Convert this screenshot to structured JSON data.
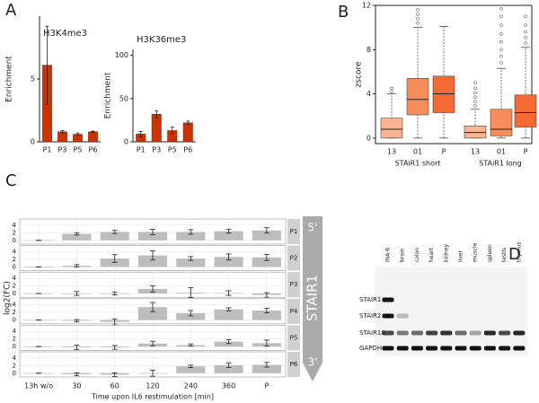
{
  "chart_data": [
    {
      "type": "bar",
      "panel": "A",
      "title": "H3K4me3",
      "ylabel": "Enrichment",
      "categories": [
        "P1",
        "P3",
        "P5",
        "P6"
      ],
      "values": [
        6.1,
        0.8,
        0.6,
        0.8
      ],
      "errors": [
        3.1,
        0.1,
        0.1,
        0.05
      ],
      "color": "#cc3300",
      "ylim": [
        0,
        10
      ],
      "yticks": [
        0,
        5
      ]
    },
    {
      "type": "bar",
      "title": "H3K36me3",
      "ylabel": "Enrichment",
      "categories": [
        "P1",
        "P3",
        "P5",
        "P6"
      ],
      "values": [
        9,
        32,
        13,
        22
      ],
      "errors": [
        3,
        4,
        4,
        2
      ],
      "color": "#cc3300",
      "ylim": [
        0,
        107
      ],
      "yticks": [
        0,
        50,
        100
      ]
    },
    {
      "type": "box",
      "panel": "B",
      "ylabel": "zscore",
      "categories": [
        "13",
        "01",
        "P",
        "13",
        "01",
        "P"
      ],
      "group_labels": [
        "STAiR1 short",
        "STAiR1 long"
      ],
      "ylim": [
        -0.5,
        12
      ],
      "yticks": [
        0,
        4,
        8,
        12
      ],
      "boxes": [
        {
          "whislo": 0,
          "q1": 0,
          "median": 0.8,
          "q3": 1.8,
          "whishi": 4,
          "fliers": [
            4.2,
            4.5
          ],
          "color": "#f9b491"
        },
        {
          "whislo": 0,
          "q1": 2.1,
          "median": 3.5,
          "q3": 5.4,
          "whishi": 10,
          "fliers": [
            10.4,
            10.8,
            11.2,
            11.6
          ],
          "color": "#f88d5c"
        },
        {
          "whislo": 0,
          "q1": 2.3,
          "median": 4.0,
          "q3": 5.6,
          "whishi": 10.1,
          "fliers": [],
          "color": "#f36a35"
        },
        {
          "whislo": 0,
          "q1": 0,
          "median": 0.5,
          "q3": 1.1,
          "whishi": 2.6,
          "fliers": [
            2.9,
            3.3,
            3.7,
            4.1,
            4.5,
            5.0
          ],
          "color": "#f9b491"
        },
        {
          "whislo": 0,
          "q1": 0.2,
          "median": 0.8,
          "q3": 2.6,
          "whishi": 6.3,
          "fliers": [
            6.8,
            7.4,
            8.0,
            8.7,
            9.4,
            10.2,
            11.0,
            11.7
          ],
          "color": "#f88d5c"
        },
        {
          "whislo": 0,
          "q1": 1.0,
          "median": 2.3,
          "q3": 3.9,
          "whishi": 8.2,
          "fliers": [
            8.6,
            9.1,
            9.6,
            10.2,
            11.0
          ],
          "color": "#f36a35"
        }
      ]
    },
    {
      "type": "bar-grid",
      "panel": "C",
      "ylabel": "log2(FC)",
      "xlabel": "Time upon IL6 restimulation [min]",
      "categories": [
        "13h w/o",
        "30",
        "60",
        "120",
        "240",
        "360",
        "P"
      ],
      "color": "#bdbdbd",
      "ylim": [
        -1,
        5.6
      ],
      "yticks": [
        0,
        2,
        4
      ],
      "grid": true,
      "arrow_labels": [
        "5'",
        "STAIR1",
        "3'"
      ],
      "rows": [
        {
          "name": "P1",
          "values": [
            0,
            1.7,
            2.2,
            2.2,
            2.2,
            2.4,
            2.6
          ],
          "errors": [
            0,
            0.3,
            0.4,
            0.7,
            0.6,
            0.5,
            0.7
          ]
        },
        {
          "name": "P2",
          "values": [
            0,
            0.3,
            2.2,
            3.0,
            2.2,
            2.6,
            2.5
          ],
          "errors": [
            0,
            0.3,
            1.0,
            1.2,
            0.5,
            0.8,
            0.8
          ]
        },
        {
          "name": "P3",
          "values": [
            0,
            0,
            0,
            1.2,
            0.2,
            0.1,
            -0.4
          ],
          "errors": [
            0,
            0.5,
            0.4,
            0.8,
            1.3,
            0.6,
            0.6
          ]
        },
        {
          "name": "P4",
          "values": [
            0,
            -0.2,
            -0.5,
            3.4,
            1.8,
            2.8,
            2.5
          ],
          "errors": [
            0,
            0.3,
            0.8,
            1.2,
            0.7,
            0.4,
            0.6
          ]
        },
        {
          "name": "P5",
          "values": [
            0,
            -0.2,
            -0.2,
            0.8,
            0.4,
            1.3,
            0.9
          ],
          "errors": [
            0,
            0.6,
            0.5,
            0.6,
            0.3,
            0.5,
            0.8
          ]
        },
        {
          "name": "P6",
          "values": [
            0,
            -0.3,
            -0.4,
            0,
            1.8,
            2.1,
            2.2
          ],
          "errors": [
            0,
            0.4,
            0.5,
            0.8,
            0.3,
            0.6,
            0.6
          ]
        }
      ]
    }
  ],
  "gel_panel": {
    "panel": "D",
    "lanes": [
      "INA-6",
      "brain",
      "colon",
      "heart",
      "kidney",
      "liver",
      "muscle",
      "spleen",
      "testis",
      "thymus"
    ],
    "bands": [
      "STAIR1",
      "STAIR2",
      "STAIR18",
      "GAPDH"
    ]
  }
}
